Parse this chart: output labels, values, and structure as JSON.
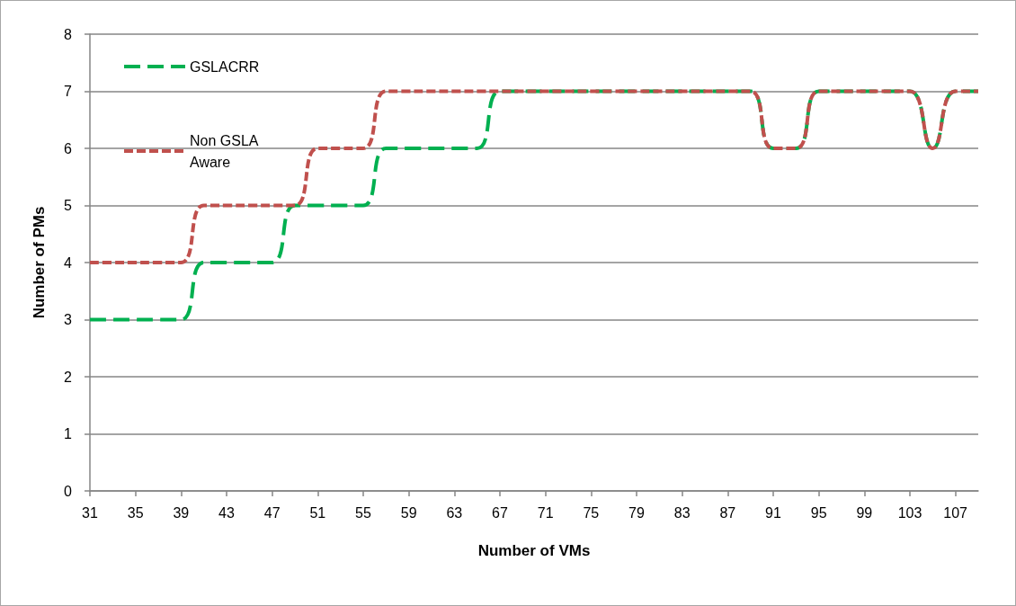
{
  "chart_data": {
    "type": "line",
    "xlabel": "Number of VMs",
    "ylabel": "Number of PMs",
    "x": [
      31,
      33,
      35,
      37,
      39,
      41,
      43,
      45,
      47,
      49,
      51,
      53,
      55,
      57,
      59,
      61,
      63,
      65,
      67,
      69,
      71,
      73,
      75,
      77,
      79,
      81,
      83,
      85,
      87,
      89,
      91,
      93,
      95,
      97,
      99,
      101,
      103,
      105,
      107,
      109
    ],
    "xlim": [
      31,
      109
    ],
    "xticks": [
      31,
      35,
      39,
      43,
      47,
      51,
      55,
      59,
      63,
      67,
      71,
      75,
      79,
      83,
      87,
      91,
      95,
      99,
      103,
      107
    ],
    "ylim": [
      0,
      8
    ],
    "yticks": [
      0,
      1,
      2,
      3,
      4,
      5,
      6,
      7,
      8
    ],
    "grid": "y",
    "legend": "top left",
    "marker": "none",
    "line_style": "dashed",
    "series": [
      {
        "name": "GSLACRR",
        "color": "#00b050",
        "values": [
          3,
          3,
          3,
          3,
          3,
          4,
          4,
          4,
          4,
          5,
          5,
          5,
          5,
          6,
          6,
          6,
          6,
          6,
          7,
          7,
          7,
          7,
          7,
          7,
          7,
          7,
          7,
          7,
          7,
          7,
          6,
          6,
          7,
          7,
          7,
          7,
          7,
          6,
          7,
          7
        ]
      },
      {
        "name": "Non GSLA Aware",
        "color": "#c0504d",
        "values": [
          4,
          4,
          4,
          4,
          4,
          5,
          5,
          5,
          5,
          5,
          6,
          6,
          6,
          7,
          7,
          7,
          7,
          7,
          7,
          7,
          7,
          7,
          7,
          7,
          7,
          7,
          7,
          7,
          7,
          7,
          6,
          6,
          7,
          7,
          7,
          7,
          7,
          6,
          7,
          7
        ]
      }
    ]
  }
}
